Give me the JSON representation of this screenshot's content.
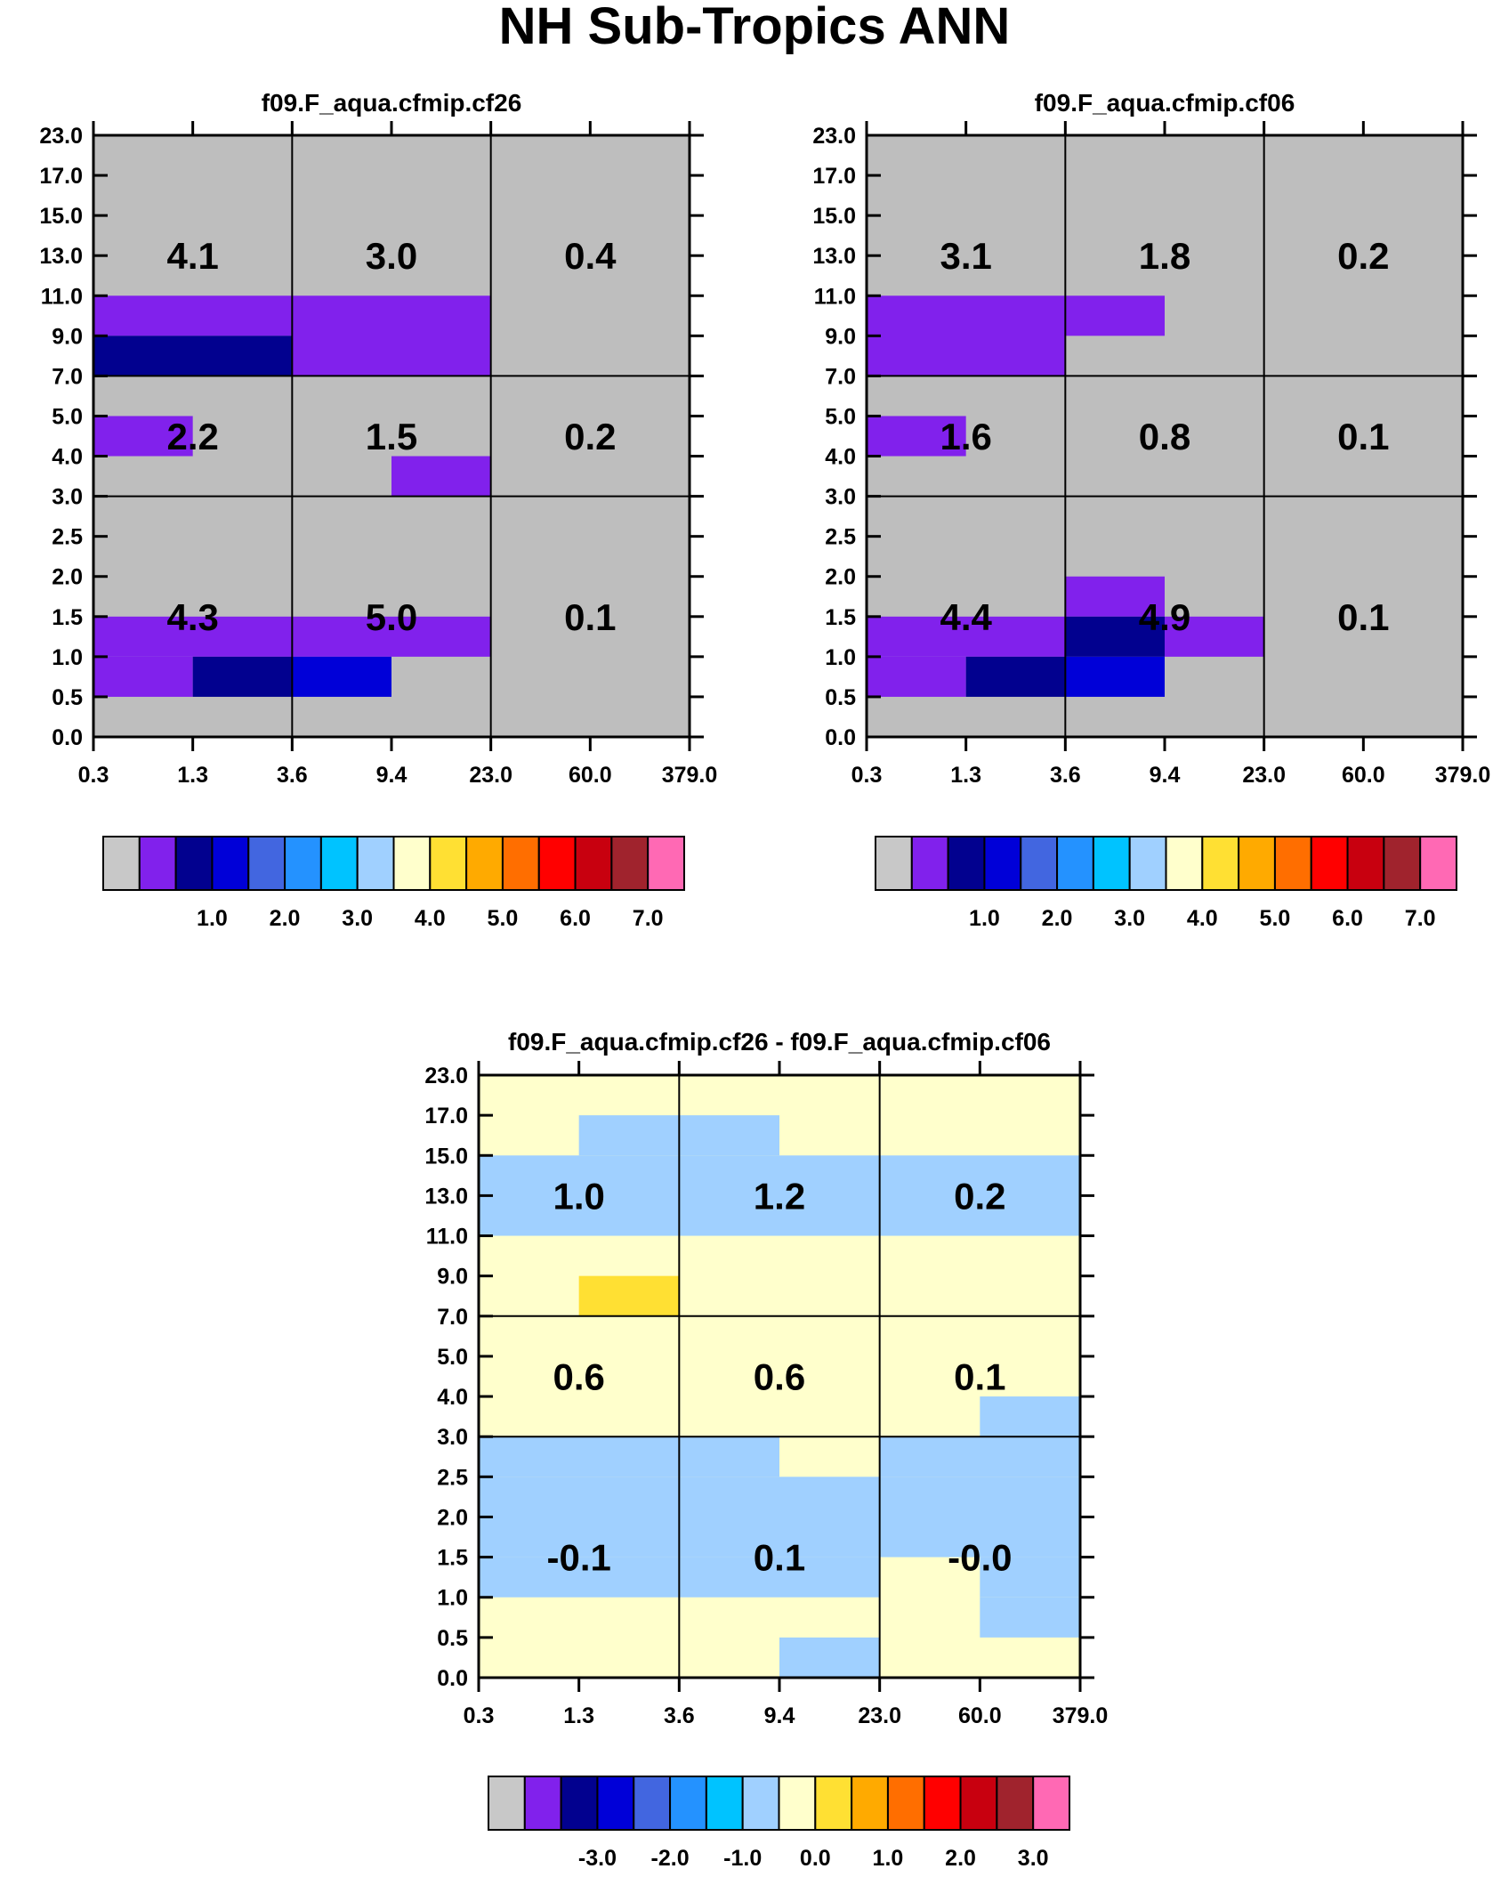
{
  "title": "NH Sub-Tropics ANN",
  "y_tick_labels": [
    "0.0",
    "0.5",
    "1.0",
    "1.5",
    "2.0",
    "2.5",
    "3.0",
    "4.0",
    "5.0",
    "7.0",
    "9.0",
    "11.0",
    "13.0",
    "15.0",
    "17.0",
    "23.0"
  ],
  "x_tick_labels": [
    "0.3",
    "1.3",
    "3.6",
    "9.4",
    "23.0",
    "60.0",
    "379.0"
  ],
  "colors": {
    "background_gray": "#bebebe",
    "diff_background": "#ffffcc",
    "purple": "#8121ec",
    "navy": "#02018f",
    "blue": "#0000d8",
    "light_blue": "#a0d0ff",
    "yellow": "#ffe033"
  },
  "colorbar": {
    "colors": [
      "#c8c8c8",
      "#8121ec",
      "#02018f",
      "#0000d8",
      "#4266e0",
      "#2492ff",
      "#00c3ff",
      "#a0d0ff",
      "#ffffcc",
      "#ffe033",
      "#ffaa00",
      "#ff6e00",
      "#ff0000",
      "#c8000f",
      "#a0232d",
      "#ff69b4"
    ],
    "labels_abs": [
      "1.0",
      "2.0",
      "3.0",
      "4.0",
      "5.0",
      "6.0",
      "7.0"
    ],
    "labels_diff": [
      "-3.0",
      "-2.0",
      "-1.0",
      "0.0",
      "1.0",
      "2.0",
      "3.0"
    ]
  },
  "chart_data": [
    {
      "type": "heatmap",
      "title": "f09.F_aqua.cfmip.cf26",
      "x_bin_edges": [
        "0.3",
        "1.3",
        "3.6",
        "9.4",
        "23.0",
        "60.0",
        "379.0"
      ],
      "y_bin_edges": [
        "0.0",
        "0.5",
        "1.0",
        "1.5",
        "2.0",
        "2.5",
        "3.0",
        "4.0",
        "5.0",
        "7.0",
        "9.0",
        "11.0",
        "13.0",
        "15.0",
        "17.0",
        "23.0"
      ],
      "background": "gray",
      "cells": [
        {
          "x": [
            0,
            2
          ],
          "y": [
            10,
            11
          ],
          "color": "purple"
        },
        {
          "x": [
            0,
            2
          ],
          "y": [
            9,
            10
          ],
          "color": "navy"
        },
        {
          "x": [
            2,
            4
          ],
          "y": [
            9,
            11
          ],
          "color": "purple"
        },
        {
          "x": [
            0,
            1
          ],
          "y": [
            7,
            8
          ],
          "color": "purple"
        },
        {
          "x": [
            3,
            4
          ],
          "y": [
            6,
            7
          ],
          "color": "purple"
        },
        {
          "x": [
            0,
            4
          ],
          "y": [
            2,
            3
          ],
          "color": "purple"
        },
        {
          "x": [
            0,
            1
          ],
          "y": [
            1,
            2
          ],
          "color": "purple"
        },
        {
          "x": [
            1,
            2
          ],
          "y": [
            1,
            2
          ],
          "color": "navy"
        },
        {
          "x": [
            2,
            3
          ],
          "y": [
            1,
            2
          ],
          "color": "blue"
        }
      ],
      "region_values": [
        [
          "4.3",
          "5.0",
          "0.1"
        ],
        [
          "2.2",
          "1.5",
          "0.2"
        ],
        [
          "4.1",
          "3.0",
          "0.4"
        ]
      ]
    },
    {
      "type": "heatmap",
      "title": "f09.F_aqua.cfmip.cf06",
      "x_bin_edges": [
        "0.3",
        "1.3",
        "3.6",
        "9.4",
        "23.0",
        "60.0",
        "379.0"
      ],
      "y_bin_edges": [
        "0.0",
        "0.5",
        "1.0",
        "1.5",
        "2.0",
        "2.5",
        "3.0",
        "4.0",
        "5.0",
        "7.0",
        "9.0",
        "11.0",
        "13.0",
        "15.0",
        "17.0",
        "23.0"
      ],
      "background": "gray",
      "cells": [
        {
          "x": [
            0,
            2
          ],
          "y": [
            9,
            11
          ],
          "color": "purple"
        },
        {
          "x": [
            2,
            3
          ],
          "y": [
            10,
            11
          ],
          "color": "purple"
        },
        {
          "x": [
            0,
            1
          ],
          "y": [
            7,
            8
          ],
          "color": "purple"
        },
        {
          "x": [
            2,
            3
          ],
          "y": [
            3,
            4
          ],
          "color": "purple"
        },
        {
          "x": [
            0,
            2
          ],
          "y": [
            2,
            3
          ],
          "color": "purple"
        },
        {
          "x": [
            3,
            4
          ],
          "y": [
            2,
            3
          ],
          "color": "purple"
        },
        {
          "x": [
            2,
            3
          ],
          "y": [
            2,
            3
          ],
          "color": "navy"
        },
        {
          "x": [
            0,
            1
          ],
          "y": [
            1,
            2
          ],
          "color": "purple"
        },
        {
          "x": [
            1,
            2
          ],
          "y": [
            1,
            2
          ],
          "color": "navy"
        },
        {
          "x": [
            2,
            3
          ],
          "y": [
            1,
            2
          ],
          "color": "blue"
        }
      ],
      "region_values": [
        [
          "4.4",
          "4.9",
          "0.1"
        ],
        [
          "1.6",
          "0.8",
          "0.1"
        ],
        [
          "3.1",
          "1.8",
          "0.2"
        ]
      ]
    },
    {
      "type": "heatmap",
      "title": "f09.F_aqua.cfmip.cf26 - f09.F_aqua.cfmip.cf06",
      "x_bin_edges": [
        "0.3",
        "1.3",
        "3.6",
        "9.4",
        "23.0",
        "60.0",
        "379.0"
      ],
      "y_bin_edges": [
        "0.0",
        "0.5",
        "1.0",
        "1.5",
        "2.0",
        "2.5",
        "3.0",
        "4.0",
        "5.0",
        "7.0",
        "9.0",
        "11.0",
        "13.0",
        "15.0",
        "17.0",
        "23.0"
      ],
      "background": "diff",
      "cells": [
        {
          "x": [
            0,
            6
          ],
          "y": [
            11,
            13
          ],
          "color": "light_blue"
        },
        {
          "x": [
            1,
            3
          ],
          "y": [
            13,
            14
          ],
          "color": "light_blue"
        },
        {
          "x": [
            1,
            2
          ],
          "y": [
            9,
            10
          ],
          "color": "yellow"
        },
        {
          "x": [
            5,
            6
          ],
          "y": [
            6,
            7
          ],
          "color": "light_blue"
        },
        {
          "x": [
            0,
            3
          ],
          "y": [
            5,
            6
          ],
          "color": "light_blue"
        },
        {
          "x": [
            4,
            6
          ],
          "y": [
            5,
            6
          ],
          "color": "light_blue"
        },
        {
          "x": [
            0,
            6
          ],
          "y": [
            3,
            5
          ],
          "color": "light_blue"
        },
        {
          "x": [
            0,
            4
          ],
          "y": [
            2,
            3
          ],
          "color": "light_blue"
        },
        {
          "x": [
            5,
            6
          ],
          "y": [
            2,
            3
          ],
          "color": "light_blue"
        },
        {
          "x": [
            5,
            6
          ],
          "y": [
            1,
            2
          ],
          "color": "light_blue"
        },
        {
          "x": [
            3,
            4
          ],
          "y": [
            0,
            1
          ],
          "color": "light_blue"
        }
      ],
      "region_values": [
        [
          "-0.1",
          "0.1",
          "-0.0"
        ],
        [
          "0.6",
          "0.6",
          "0.1"
        ],
        [
          "1.0",
          "1.2",
          "0.2"
        ]
      ]
    }
  ]
}
